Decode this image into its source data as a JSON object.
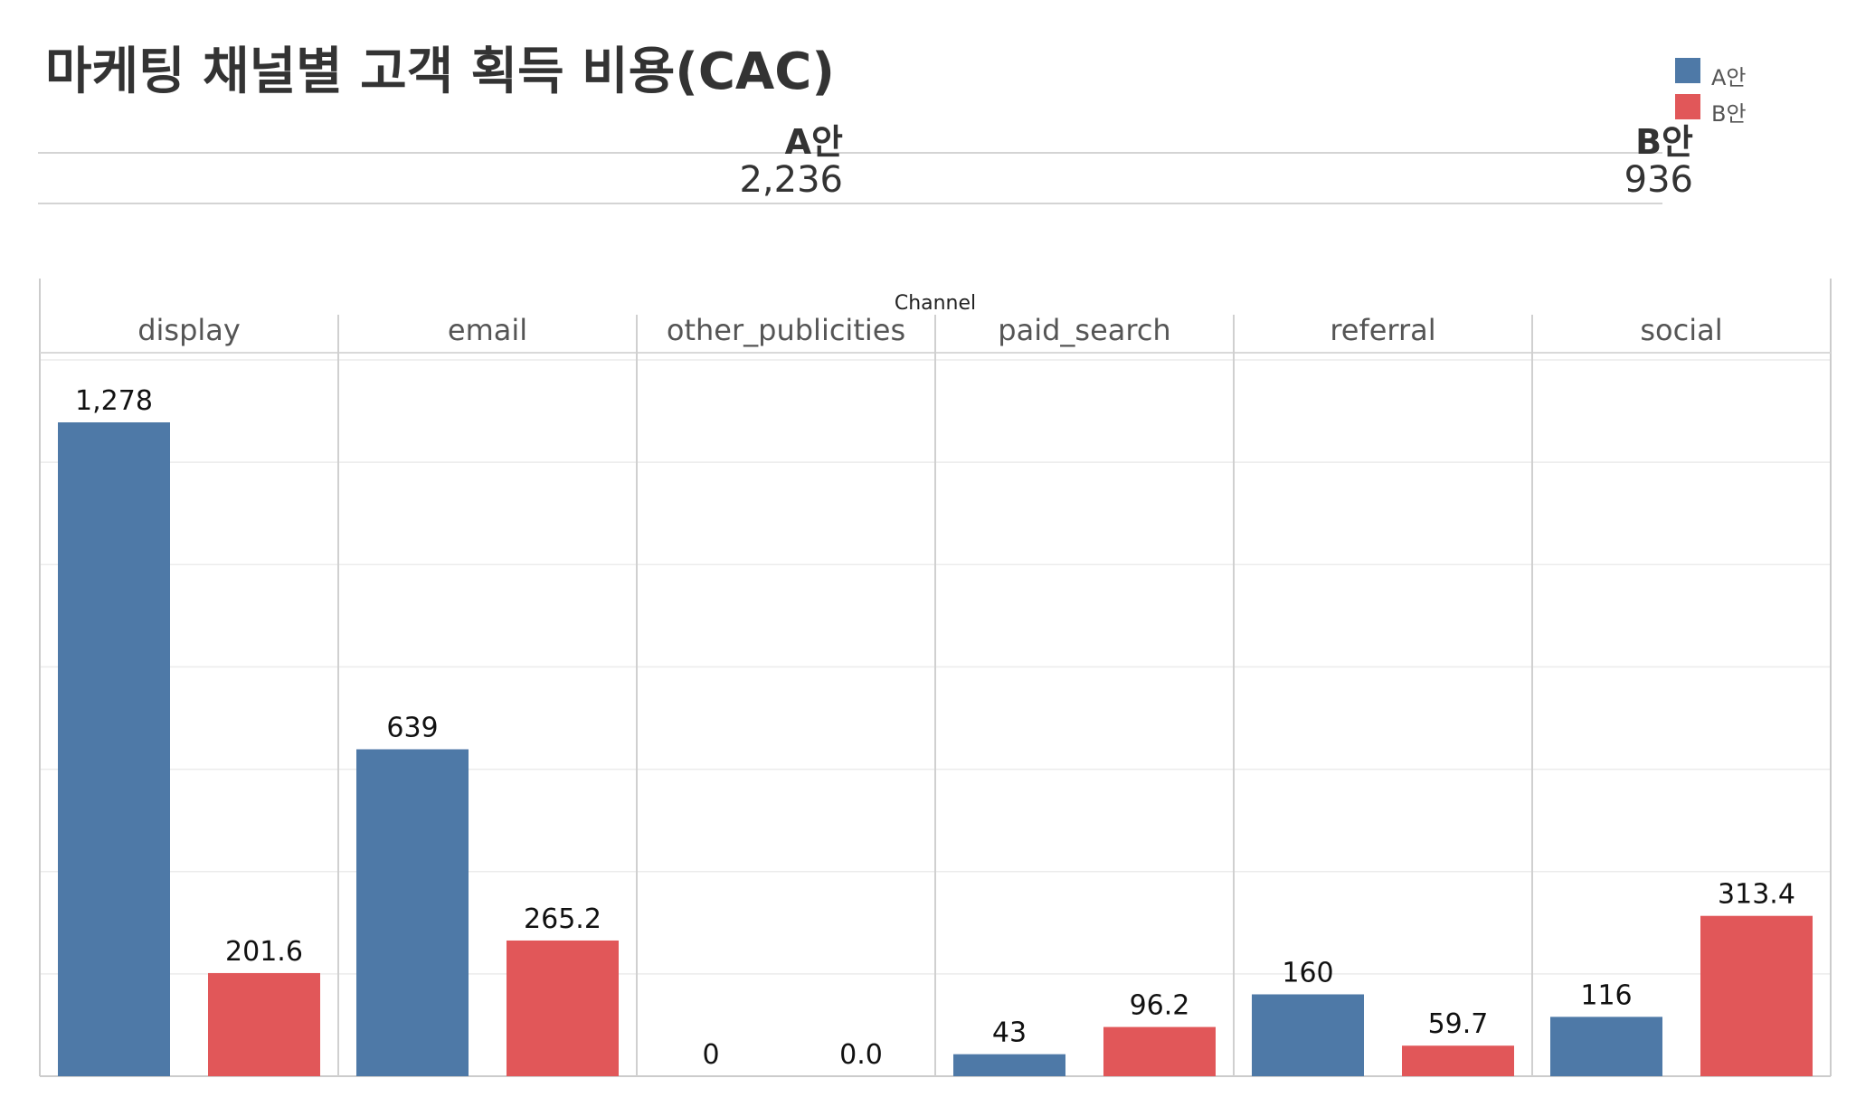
{
  "title": "마케팅 채널별 고객 획득 비용(CAC)",
  "legend": [
    {
      "label": "A안",
      "color": "#4e79a7"
    },
    {
      "label": "B안",
      "color": "#e15759"
    }
  ],
  "summary": {
    "a": {
      "header": "A안",
      "value": "2,236"
    },
    "b": {
      "header": "B안",
      "value": "936"
    }
  },
  "chart_data": {
    "type": "bar",
    "title": "마케팅 채널별 고객 획득 비용(CAC)",
    "facet_label": "Channel",
    "categories": [
      "display",
      "email",
      "other_publicities",
      "paid_search",
      "referral",
      "social"
    ],
    "series": [
      {
        "name": "A안",
        "color": "#4e79a7",
        "values": [
          1278,
          639,
          0,
          43,
          160,
          116
        ],
        "labels": [
          "1,278",
          "639",
          "0",
          "43",
          "160",
          "116"
        ]
      },
      {
        "name": "B안",
        "color": "#e15759",
        "values": [
          201.6,
          265.2,
          0.0,
          96.2,
          59.7,
          313.4
        ],
        "labels": [
          "201.6",
          "265.2",
          "0.0",
          "96.2",
          "59.7",
          "313.4"
        ]
      }
    ],
    "ylim": [
      0,
      1400
    ],
    "grid": true,
    "legend_position": "top-right"
  }
}
